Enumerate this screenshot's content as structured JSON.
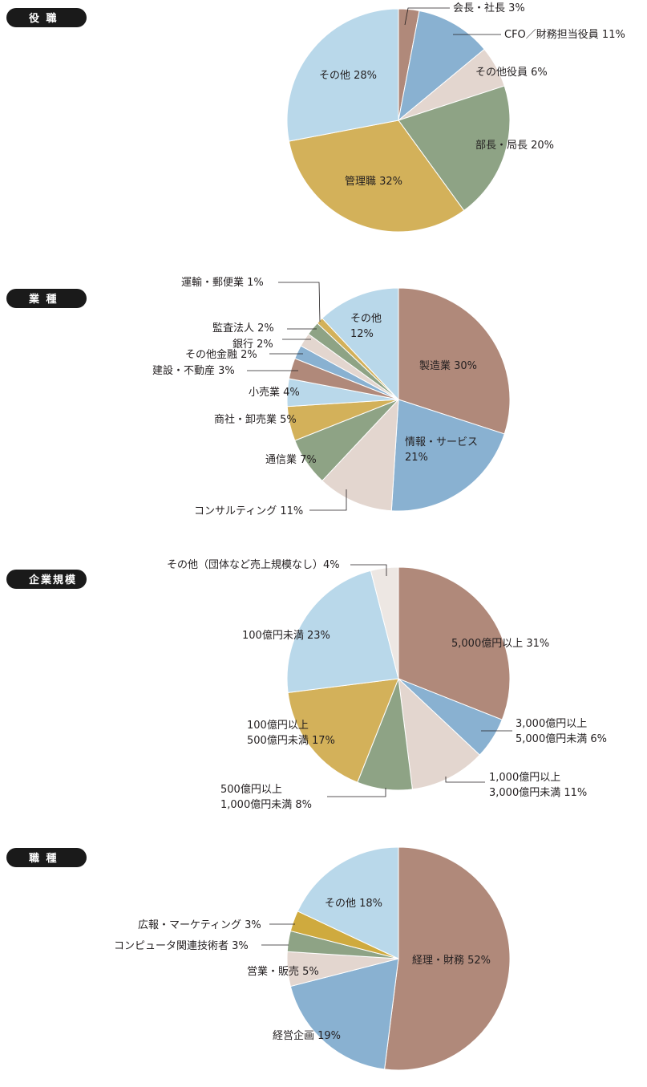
{
  "colors": {
    "brown": "#b0897a",
    "blue": "#89b1d1",
    "pink": "#e3d6cf",
    "green": "#8ea385",
    "gold": "#d3b15a",
    "lightblue": "#b9d8ea",
    "cream": "#ede7e3",
    "gold_dark": "#cfaa3e"
  },
  "chart_data": [
    {
      "type": "pie",
      "title": "役 職",
      "slices": [
        {
          "label": "会長・社長 3%",
          "value": 3,
          "color": "brown"
        },
        {
          "label": "CFO／財務担当役員 11%",
          "value": 11,
          "color": "blue"
        },
        {
          "label": "その他役員 6%",
          "value": 6,
          "color": "pink"
        },
        {
          "label": "部長・局長 20%",
          "value": 20,
          "color": "green"
        },
        {
          "label": "管理職 32%",
          "value": 32,
          "color": "gold"
        },
        {
          "label": "その他 28%",
          "value": 28,
          "color": "lightblue"
        }
      ]
    },
    {
      "type": "pie",
      "title": "業 種",
      "slices": [
        {
          "label": "製造業 30%",
          "value": 30,
          "color": "brown"
        },
        {
          "label": "情報・サービス\n21%",
          "value": 21,
          "color": "blue"
        },
        {
          "label": "コンサルティング 11%",
          "value": 11,
          "color": "pink"
        },
        {
          "label": "通信業 7%",
          "value": 7,
          "color": "green"
        },
        {
          "label": "商社・卸売業 5%",
          "value": 5,
          "color": "gold"
        },
        {
          "label": "小売業 4%",
          "value": 4,
          "color": "lightblue"
        },
        {
          "label": "建設・不動産 3%",
          "value": 3,
          "color": "brown"
        },
        {
          "label": "その他金融 2%",
          "value": 2,
          "color": "blue"
        },
        {
          "label": "銀行 2%",
          "value": 2,
          "color": "pink"
        },
        {
          "label": "監査法人 2%",
          "value": 2,
          "color": "green"
        },
        {
          "label": "運輸・郵便業 1%",
          "value": 1,
          "color": "gold"
        },
        {
          "label": "その他\n12%",
          "value": 12,
          "color": "lightblue"
        }
      ]
    },
    {
      "type": "pie",
      "title": "企業規模",
      "slices": [
        {
          "label": "5,000億円以上 31%",
          "value": 31,
          "color": "brown"
        },
        {
          "label": "3,000億円以上\n5,000億円未満 6%",
          "value": 6,
          "color": "blue"
        },
        {
          "label": "1,000億円以上\n3,000億円未満 11%",
          "value": 11,
          "color": "pink"
        },
        {
          "label": "500億円以上\n1,000億円未満 8%",
          "value": 8,
          "color": "green"
        },
        {
          "label": "100億円以上\n500億円未満 17%",
          "value": 17,
          "color": "gold"
        },
        {
          "label": "100億円未満 23%",
          "value": 23,
          "color": "lightblue"
        },
        {
          "label": "その他（団体など売上規模なし）4%",
          "value": 4,
          "color": "cream"
        }
      ]
    },
    {
      "type": "pie",
      "title": "職 種",
      "slices": [
        {
          "label": "経理・財務 52%",
          "value": 52,
          "color": "brown"
        },
        {
          "label": "経営企画 19%",
          "value": 19,
          "color": "blue"
        },
        {
          "label": "営業・販売 5%",
          "value": 5,
          "color": "pink"
        },
        {
          "label": "コンピュータ関連技術者 3%",
          "value": 3,
          "color": "green"
        },
        {
          "label": "広報・マーケティング 3%",
          "value": 3,
          "color": "gold_dark"
        },
        {
          "label": "その他 18%",
          "value": 18,
          "color": "lightblue"
        }
      ]
    }
  ]
}
